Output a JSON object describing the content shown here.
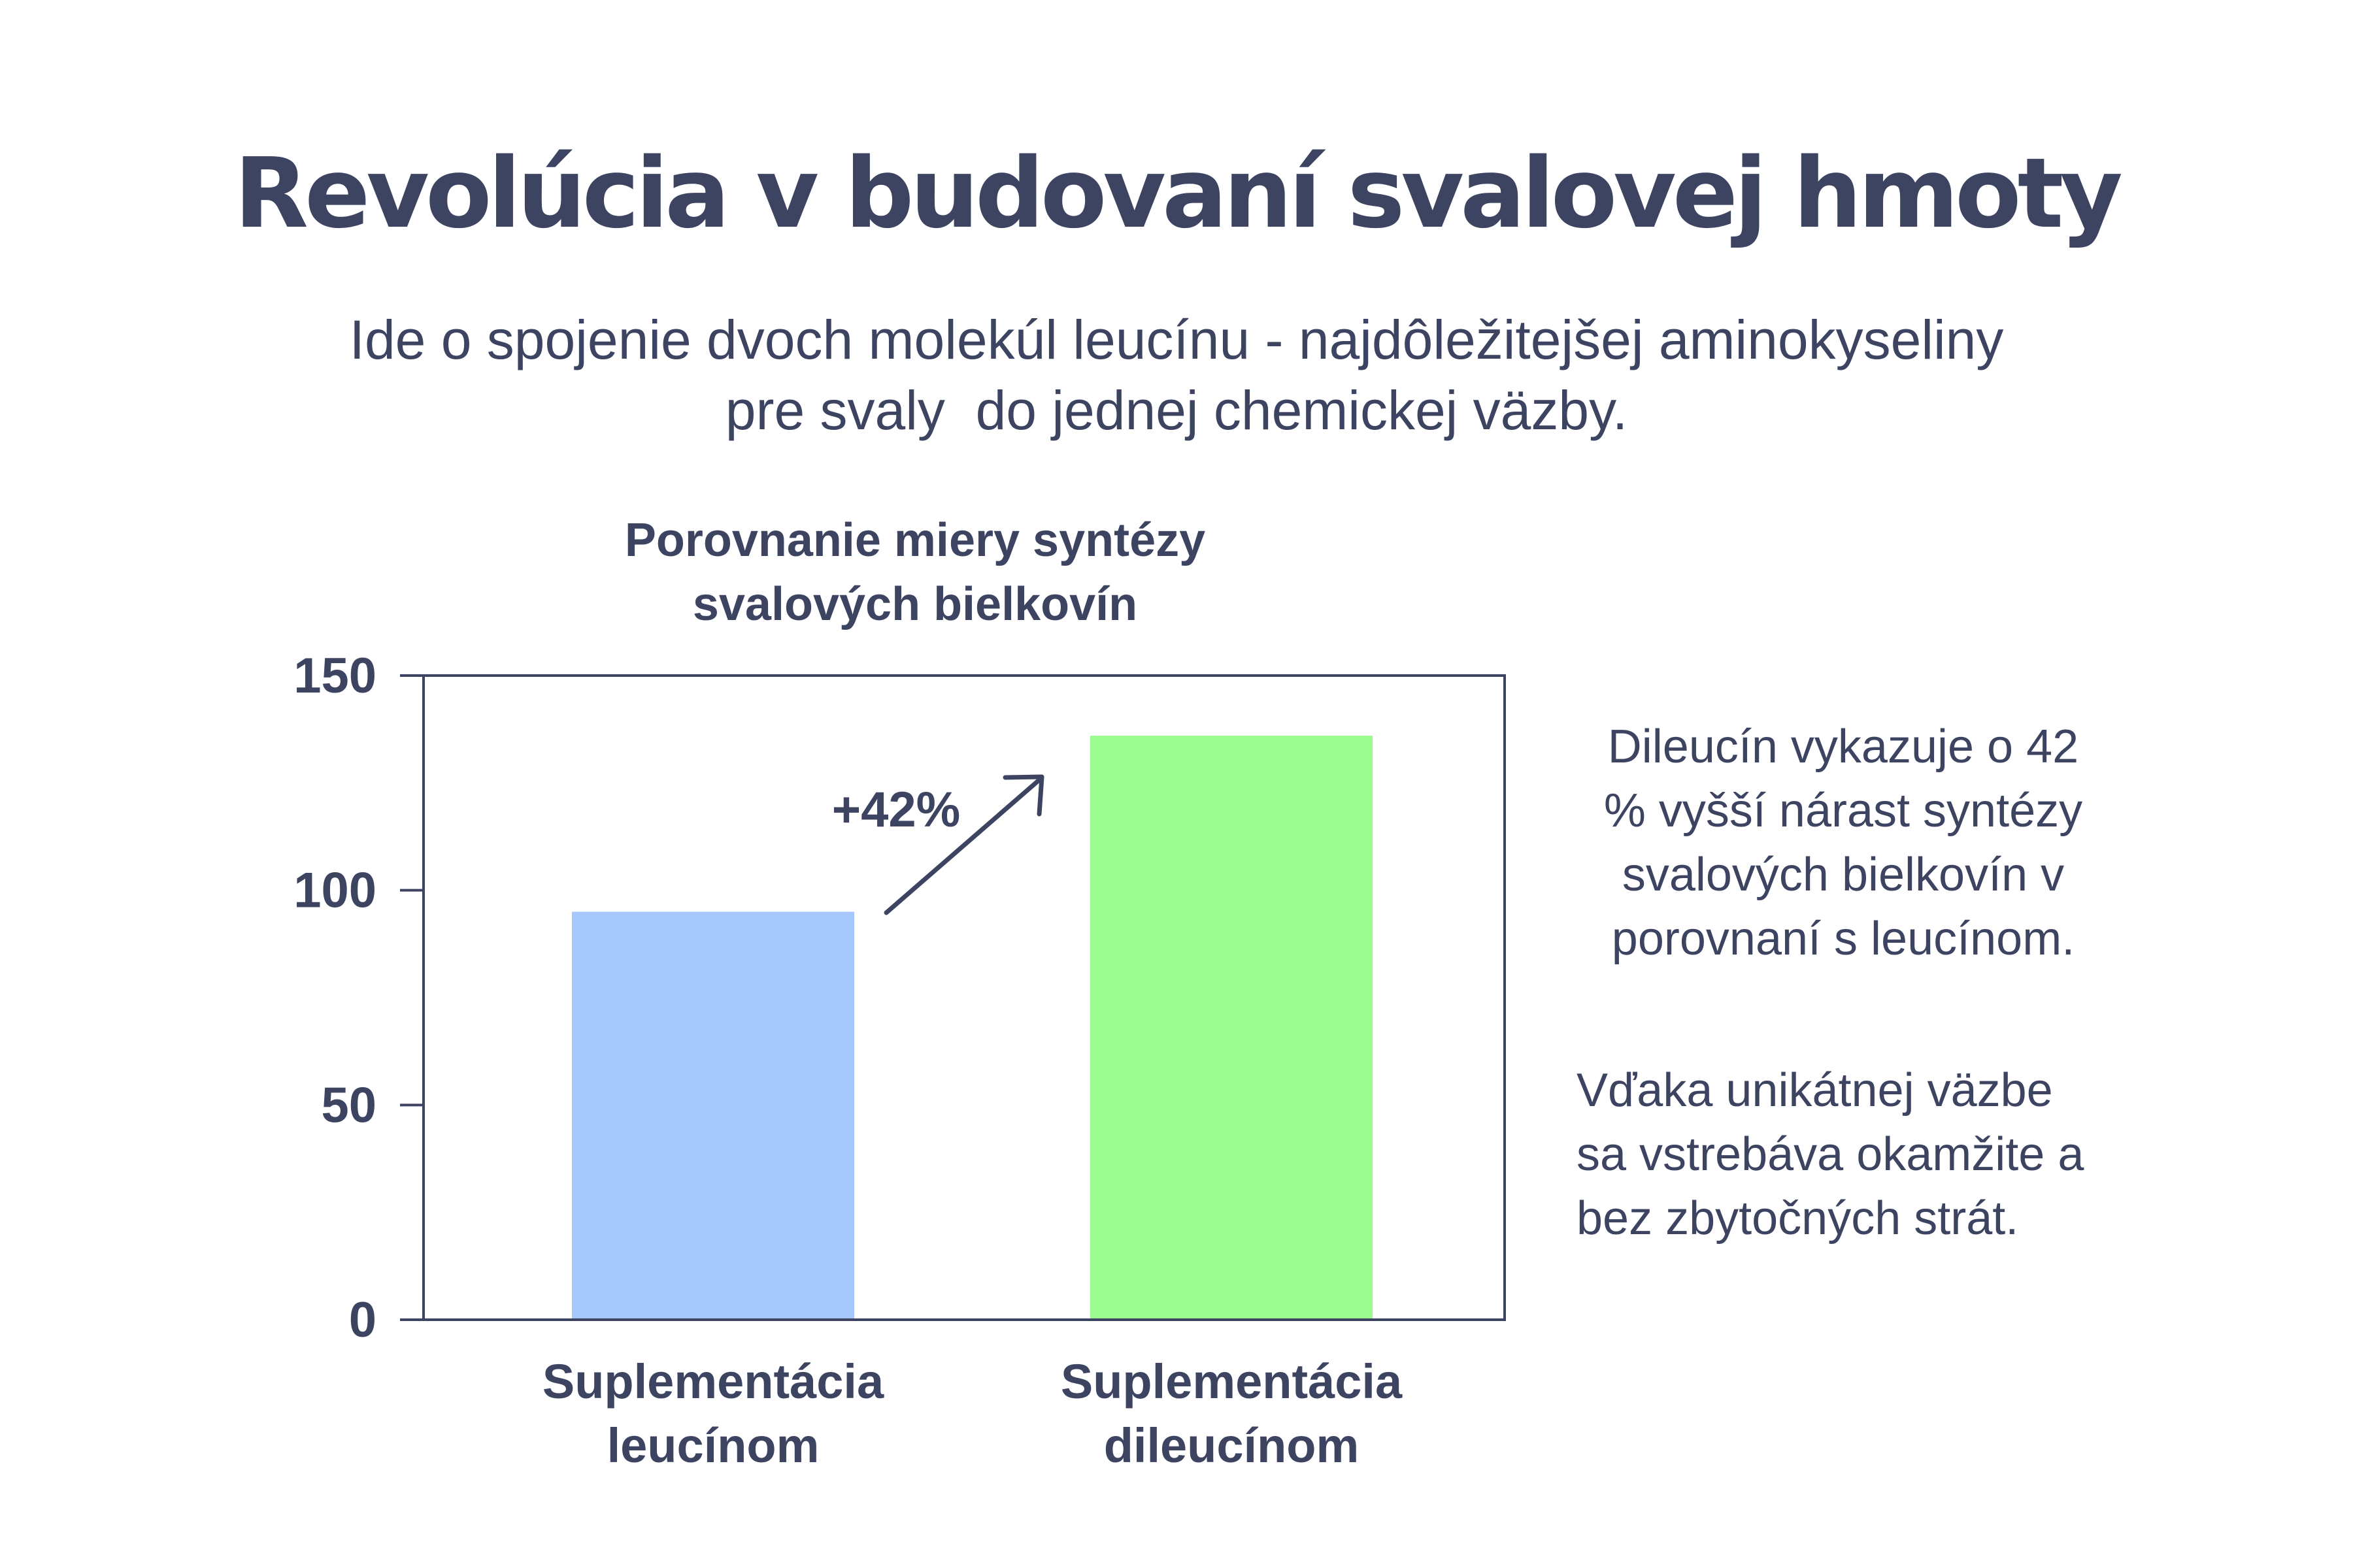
{
  "title": "Revolúcia v budovaní svalovej hmoty",
  "subtitle_lines": [
    "Ide o spojenie dvoch molekúl leucínu - najdôležitejšej aminokyseliny",
    "pre svaly  do jednej chemickej väzby."
  ],
  "chart_data": {
    "type": "bar",
    "title_lines": [
      "Porovnanie miery syntézy",
      "svalových bielkovín"
    ],
    "categories": [
      [
        "Suplementácia",
        "leucínom"
      ],
      [
        "Suplementácia",
        "dileucínom"
      ]
    ],
    "values": [
      95,
      136
    ],
    "bar_colors": [
      "#a6c8fc",
      "#9dfc91"
    ],
    "ylim": [
      0,
      150
    ],
    "yticks": [
      0,
      50,
      100,
      150
    ],
    "grid": false,
    "annotation": "+42%"
  },
  "side_text": {
    "paragraph1_lines": [
      "Dileucín vykazuje o 42",
      "% vyšší nárast syntézy",
      "svalových bielkovín v",
      "porovnaní s leucínom."
    ],
    "paragraph2_lines": [
      "Vďaka unikátnej väzbe",
      "sa vstrebáva okamžite a",
      "bez zbytočných strát."
    ]
  },
  "colors": {
    "text": "#3d4462",
    "axis": "#3d4462"
  }
}
